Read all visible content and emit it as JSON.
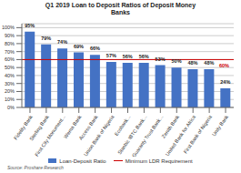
{
  "chart_data": {
    "type": "bar",
    "title": "Q1 2019 Loan to Deposit Ratios of Deposit Money\nBanks",
    "categories": [
      "Fidelity Bank",
      "Sterling Bank",
      "First City Monument...",
      "Wema Bank",
      "Access Bank",
      "Union Bank of Nigeria",
      "Ecobank...",
      "Stanbic IBTC Bank...",
      "Guaranty Trust Bank...",
      "Zenith Bank",
      "United Bank for Africa",
      "First Bank of Nigeria",
      "Unity Bank"
    ],
    "series": [
      {
        "name": "Loan-Deposit Ratio",
        "color": "#4472C4",
        "values": [
          95,
          79,
          74,
          69,
          66,
          57,
          56,
          56,
          53,
          50,
          48,
          48,
          24
        ],
        "value_labels": [
          "95%",
          "79%",
          "74%",
          "69%",
          "66%",
          "57%",
          "56%",
          "56%",
          "53%",
          "50%",
          "48%",
          "48%",
          "24%"
        ]
      }
    ],
    "data_labels": true,
    "reference_line": {
      "name": "Minimum LDR Requirement",
      "value": 60,
      "label": "60%",
      "color": "#CC0000"
    },
    "ylim": [
      0,
      105
    ],
    "yticks": [
      {
        "value": 0,
        "label": "0%"
      },
      {
        "value": 10,
        "label": "10%"
      },
      {
        "value": 20,
        "label": "20%"
      },
      {
        "value": 30,
        "label": "30%"
      },
      {
        "value": 40,
        "label": "40%"
      },
      {
        "value": 50,
        "label": "50%"
      },
      {
        "value": 60,
        "label": "60%"
      },
      {
        "value": 70,
        "label": "70%"
      },
      {
        "value": 80,
        "label": "80%"
      },
      {
        "value": 90,
        "label": "90%"
      },
      {
        "value": 100,
        "label": "100%"
      }
    ],
    "grid": true,
    "legend": "bottom",
    "source": "Source: Proshare Research"
  }
}
